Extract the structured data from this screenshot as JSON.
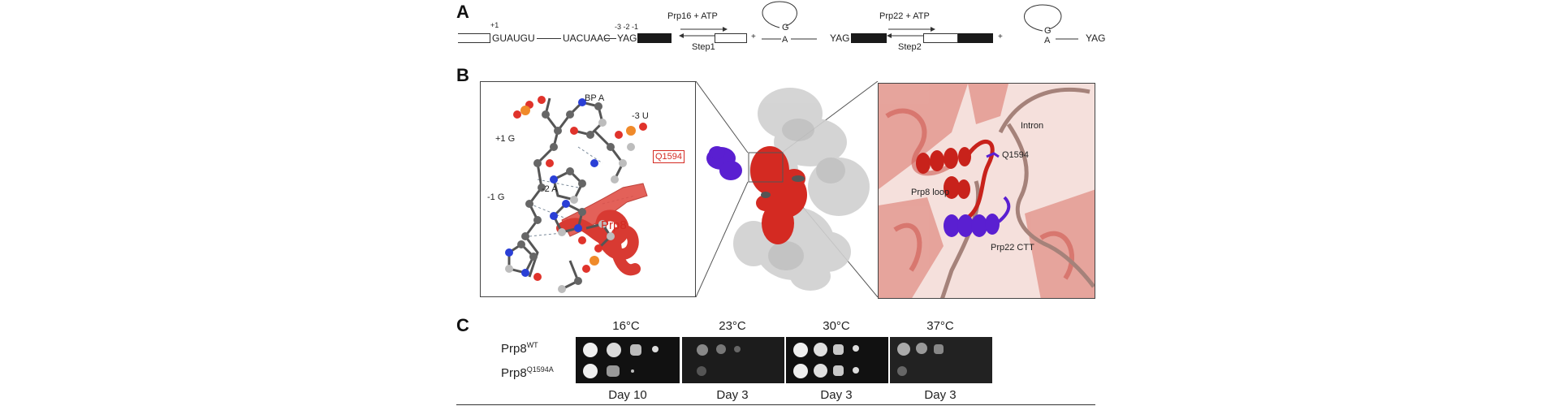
{
  "panels": {
    "a": "A",
    "b": "B",
    "c": "C"
  },
  "panel_a": {
    "left_seq": "GUAUGU",
    "branch_seq": "UACUAAC",
    "yag": "YAG",
    "pos_plus1": "+1",
    "pos_minus": "-3 -2 -1",
    "step1_enzyme": "Prp16 + ATP",
    "step1_label": "Step1",
    "step2_enzyme": "Prp22 + ATP",
    "step2_label": "Step2",
    "plus": "+",
    "lariat_g": "G",
    "lariat_a": "A"
  },
  "panel_b": {
    "left_labels": {
      "bp_a": "BP A",
      "minus3_u": "-3 U",
      "plus1_g": "+1 G",
      "q1594": "Q1594",
      "minus2_a": "-2 A",
      "minus1_g": "-1 G",
      "prp8": "Prp8"
    },
    "right_labels": {
      "intron": "Intron",
      "q1594": "Q1594",
      "prp8_loop": "Prp8 loop",
      "prp22_ctt": "Prp22 CTT"
    },
    "colors": {
      "prp8": "#d42a22",
      "prp22": "#5a1fd1",
      "intron": "#a5827a",
      "complex": "#c8c8c8"
    }
  },
  "panel_c": {
    "temperatures": [
      "16°C",
      "23°C",
      "30°C",
      "37°C"
    ],
    "days": [
      "Day 10",
      "Day 3",
      "Day 3",
      "Day 3"
    ],
    "strains": [
      {
        "base": "Prp8",
        "sup": "WT"
      },
      {
        "base": "Prp8",
        "sup": "Q1594A"
      }
    ],
    "plate_color": "#111111",
    "colony_color": "#e8e8e8"
  }
}
